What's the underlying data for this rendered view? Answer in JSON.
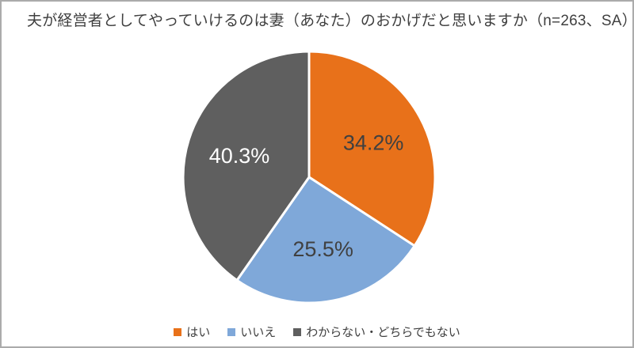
{
  "frame": {
    "background": "#FFFFFF",
    "border_color": "#ABABAB"
  },
  "title": {
    "text": "夫が経営者としてやっていけるのは妻（あなた）のおかげだと思いますか（n=263、SA）",
    "color": "#3F3F3F"
  },
  "chart_data": {
    "type": "pie",
    "title": "夫が経営者としてやっていけるのは妻（あなた）のおかげだと思いますか（n=263、SA）",
    "n": 263,
    "survey_type": "SA",
    "start_angle_deg": 0,
    "direction": "clockwise",
    "legend_position": "bottom",
    "slice_border_color": "#FFFFFF",
    "slices": [
      {
        "label": "はい",
        "value": 34.2,
        "display": "34.2%",
        "color": "#E8711A",
        "label_color": "#404040"
      },
      {
        "label": "いいえ",
        "value": 25.5,
        "display": "25.5%",
        "color": "#7FA8D9",
        "label_color": "#404040"
      },
      {
        "label": "わからない・どちらでもない",
        "value": 40.3,
        "display": "40.3%",
        "color": "#5F5F5F",
        "label_color": "#FFFFFF"
      }
    ]
  }
}
